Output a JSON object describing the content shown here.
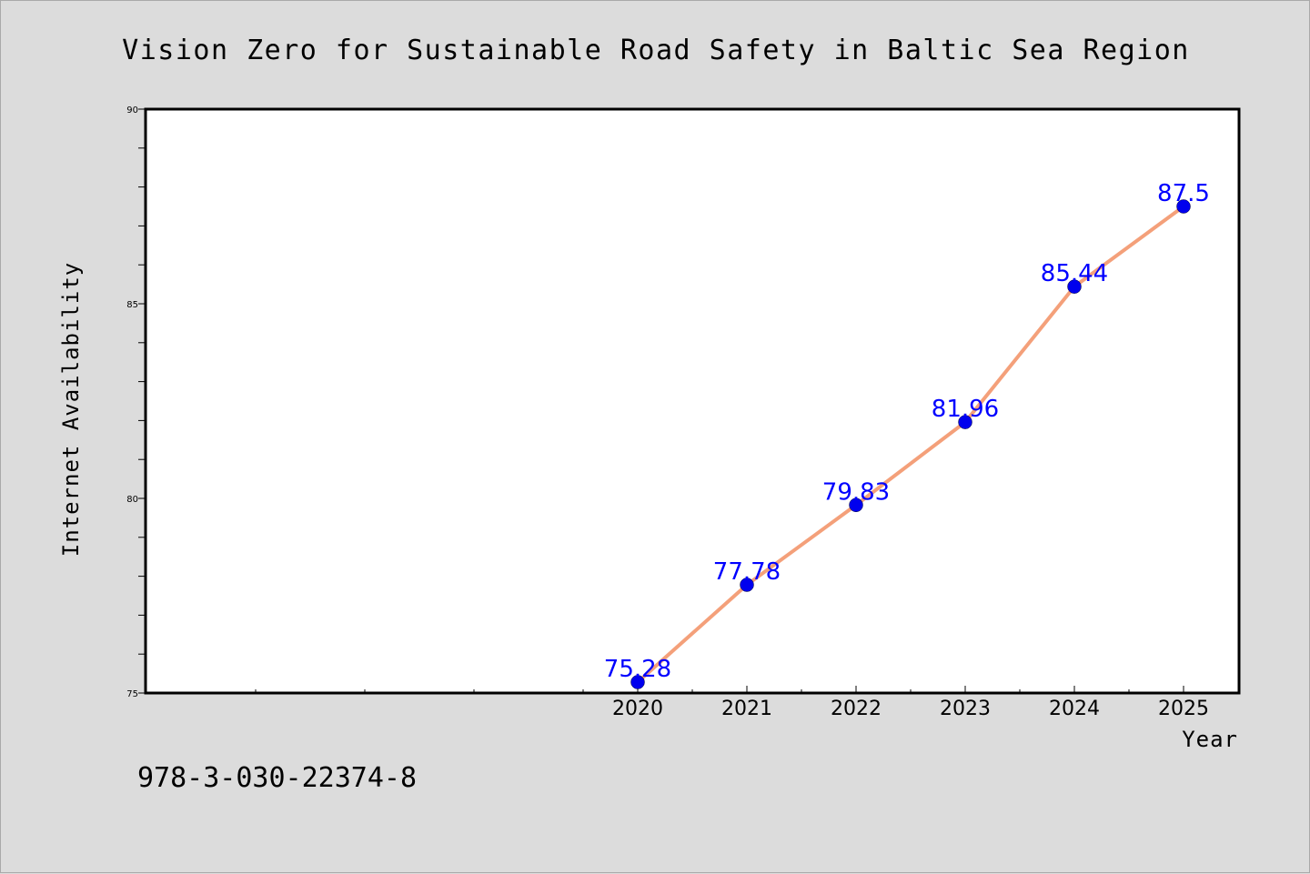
{
  "chart_data": {
    "type": "line",
    "title": "Vision Zero for Sustainable Road Safety in Baltic Sea Region",
    "xlabel": "Year",
    "ylabel": "Internet Availability",
    "x": [
      "2020",
      "2021",
      "2022",
      "2023",
      "2024",
      "2025"
    ],
    "series": [
      {
        "values": [
          75.28,
          77.78,
          79.83,
          81.96,
          85.44,
          87.5
        ],
        "data_labels": [
          "75.28",
          "77.78",
          "79.83",
          "81.96",
          "85.44",
          "87.5"
        ],
        "line_color": "#f4a07a",
        "marker_color": "#0000ee"
      }
    ],
    "ylim": [
      75,
      90
    ],
    "yticks": [
      "75",
      "80",
      "85",
      "90"
    ],
    "grid": false,
    "legend": "none",
    "label_color": "#0000ff"
  },
  "footer": {
    "isbn": "978-3-030-22374-8"
  },
  "colors": {
    "background": "#dcdcdc",
    "plot_area": "#ffffff",
    "axis": "#000000"
  }
}
